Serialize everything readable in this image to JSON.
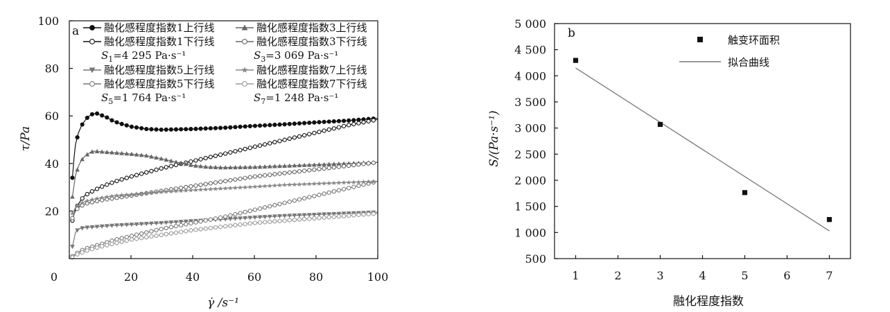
{
  "chart_data": [
    {
      "type": "line",
      "panel_label": "a",
      "xlabel": "γ̇ /s⁻¹",
      "ylabel": "τ/Pa",
      "xlim": [
        0,
        100
      ],
      "ylim": [
        0,
        100
      ],
      "xticks": [
        "0",
        "20",
        "40",
        "60",
        "80",
        "100"
      ],
      "yticks": [
        "20",
        "40",
        "60",
        "80",
        "100"
      ],
      "legend_position": "top",
      "series": [
        {
          "name": "融化感程度指数1上行线",
          "color": "#111111",
          "marker": "filled-circle",
          "x": [
            1,
            1.5,
            2,
            3,
            4,
            5,
            6,
            7,
            8,
            9,
            10,
            12,
            14,
            16,
            20,
            25,
            30,
            40,
            50,
            60,
            70,
            80,
            90,
            100
          ],
          "y": [
            34,
            42,
            48,
            53,
            56,
            58,
            59.5,
            60.5,
            61,
            61,
            60.5,
            59.5,
            58,
            57,
            55.5,
            54.5,
            54.2,
            54.5,
            55,
            55.8,
            56.5,
            57.3,
            58,
            59
          ]
        },
        {
          "name": "融化感程度指数1下行线",
          "color": "#111111",
          "marker": "open-circle",
          "x": [
            1,
            2,
            3,
            4,
            5,
            7,
            10,
            15,
            20,
            30,
            40,
            50,
            60,
            70,
            80,
            90,
            100
          ],
          "y": [
            16,
            21,
            23,
            25,
            26.5,
            28,
            30,
            32.5,
            34.5,
            38,
            41,
            44,
            47,
            50,
            53,
            56,
            58.5
          ]
        },
        {
          "name": "融化感程度指数3上行线",
          "color": "#666666",
          "marker": "filled-triangle-up",
          "x": [
            1,
            2,
            3,
            4,
            5,
            6,
            7,
            8,
            10,
            12,
            15,
            20,
            25,
            30,
            35,
            40,
            45,
            50,
            60,
            70,
            80,
            90,
            100
          ],
          "y": [
            26,
            35,
            39,
            41.5,
            43,
            44,
            44.8,
            45.2,
            45,
            44.8,
            44.5,
            44,
            43.3,
            42,
            40.5,
            39.2,
            38.5,
            38.3,
            38.5,
            39,
            39.5,
            40,
            40.5
          ]
        },
        {
          "name": "融化感程度指数3下行线",
          "color": "#666666",
          "marker": "open-circle",
          "x": [
            1,
            2,
            3,
            5,
            10,
            15,
            20,
            30,
            40,
            50,
            60,
            70,
            80,
            90,
            100
          ],
          "y": [
            17,
            20,
            21.5,
            23,
            24.5,
            25.5,
            26.5,
            28.5,
            30.5,
            32.5,
            34.5,
            36,
            37.5,
            39,
            40.5
          ]
        },
        {
          "name": "融化感程度指数5上行线",
          "color": "#777777",
          "marker": "filled-triangle-down",
          "x": [
            1,
            2,
            3,
            5,
            8,
            10,
            15,
            20,
            30,
            40,
            50,
            60,
            70,
            80,
            90,
            100
          ],
          "y": [
            5,
            11,
            12.5,
            13,
            13.3,
            13.5,
            14,
            14.3,
            15,
            15.8,
            16.5,
            17.3,
            18,
            18.5,
            19,
            19.5
          ]
        },
        {
          "name": "融化感程度指数5下行线",
          "color": "#777777",
          "marker": "open-circle",
          "x": [
            1,
            2,
            4,
            6,
            10,
            15,
            20,
            30,
            40,
            50,
            60,
            70,
            80,
            90,
            100
          ],
          "y": [
            1,
            2,
            3.5,
            4.5,
            6,
            8,
            9.5,
            12.5,
            15,
            17.5,
            20.5,
            23.5,
            26.5,
            29.5,
            32.5
          ]
        },
        {
          "name": "融化感程度指数7上行线",
          "color": "#888888",
          "marker": "filled-star",
          "x": [
            1,
            2,
            3,
            5,
            8,
            10,
            15,
            20,
            30,
            40,
            50,
            60,
            70,
            80,
            90,
            100
          ],
          "y": [
            19,
            21.5,
            22.5,
            24,
            25,
            25.5,
            26.5,
            27,
            28,
            28.8,
            29.5,
            30.2,
            31,
            31.5,
            32,
            32.5
          ]
        },
        {
          "name": "融化感程度指数7下行线",
          "color": "#999999",
          "marker": "open-circle",
          "x": [
            1,
            2,
            4,
            6,
            10,
            15,
            20,
            30,
            40,
            50,
            60,
            70,
            80,
            90,
            100
          ],
          "y": [
            0.5,
            1.5,
            2.5,
            3.5,
            5,
            6.5,
            8,
            10,
            12,
            13.5,
            15,
            16,
            17,
            18,
            19
          ]
        }
      ],
      "annotations": [
        {
          "symbol": "S",
          "sub": "1",
          "text": "=4 295  Pa·s⁻¹"
        },
        {
          "symbol": "S",
          "sub": "3",
          "text": "=3 069  Pa·s⁻¹"
        },
        {
          "symbol": "S",
          "sub": "5",
          "text": "=1 764  Pa·s⁻¹"
        },
        {
          "symbol": "S",
          "sub": "7",
          "text": "=1 248  Pa·s⁻¹"
        }
      ]
    },
    {
      "type": "scatter",
      "panel_label": "b",
      "xlabel": "融化程度指数",
      "ylabel": "S/(Pa·s⁻¹)",
      "xlim": [
        0.5,
        7.5
      ],
      "ylim": [
        500,
        5000
      ],
      "xticks": [
        "1",
        "2",
        "3",
        "4",
        "5",
        "6",
        "7"
      ],
      "yticks": [
        "500",
        "1 000",
        "1 500",
        "2 000",
        "2 500",
        "3 000",
        "3 500",
        "4 000",
        "4 500",
        "5 000"
      ],
      "legend_position": "top-center",
      "series": [
        {
          "name": "触变环面积",
          "color": "#111111",
          "marker": "filled-square",
          "x": [
            1,
            3,
            5,
            7
          ],
          "y": [
            4295,
            3069,
            1764,
            1248
          ]
        },
        {
          "name": "拟合曲线",
          "color": "#777777",
          "marker": "line",
          "x": [
            1,
            7
          ],
          "y": [
            4150,
            1030
          ]
        }
      ]
    }
  ]
}
